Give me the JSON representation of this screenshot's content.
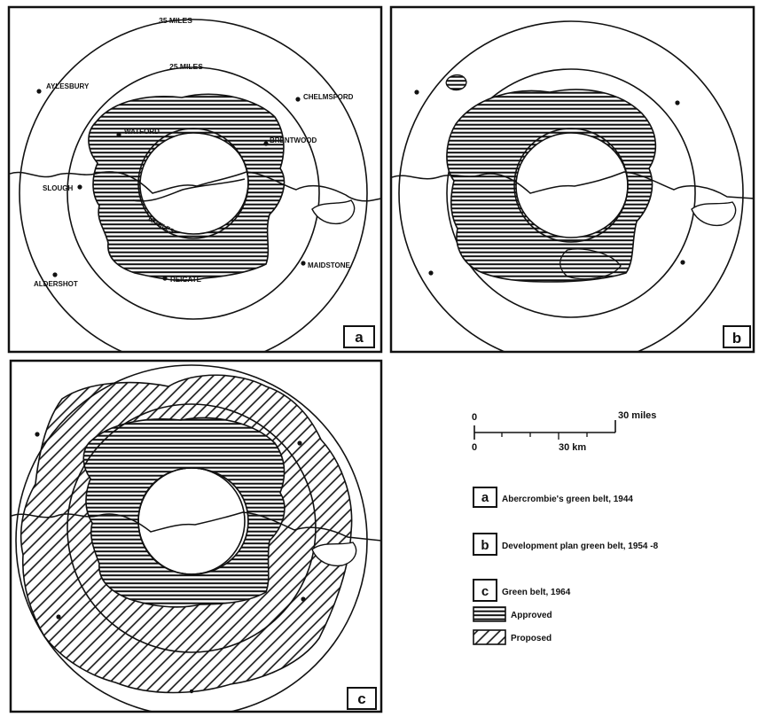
{
  "panels": {
    "a": {
      "badge": "a",
      "rings": {
        "outer": "35 MILES",
        "middle": "25 MILES",
        "inner": "10 MILES"
      },
      "places": [
        "AYLESBURY",
        "CHELMSFORD",
        "WATFORD",
        "BRENTWOOD",
        "SLOUGH",
        "MAIDSTONE",
        "ALDERSHOT",
        "REIGATE"
      ]
    },
    "b": {
      "badge": "b"
    },
    "c": {
      "badge": "c"
    }
  },
  "scale_bar": {
    "miles_zero": "0",
    "miles_end": "30 miles",
    "km_zero": "0",
    "km_end": "30 km"
  },
  "legend": {
    "items": [
      {
        "badge": "a",
        "text": "Abercrombie's green belt, 1944"
      },
      {
        "badge": "b",
        "text": "Development plan green belt, 1954 -8"
      },
      {
        "badge": "c",
        "text": "Green belt, 1964"
      }
    ],
    "approved": "Approved",
    "proposed": "Proposed"
  },
  "colors": {
    "ink": "#111111",
    "paper": "#ffffff"
  },
  "icons": [
    "town-dot-icon",
    "horizontal-hatch-swatch-icon",
    "diagonal-hatch-swatch-icon"
  ]
}
